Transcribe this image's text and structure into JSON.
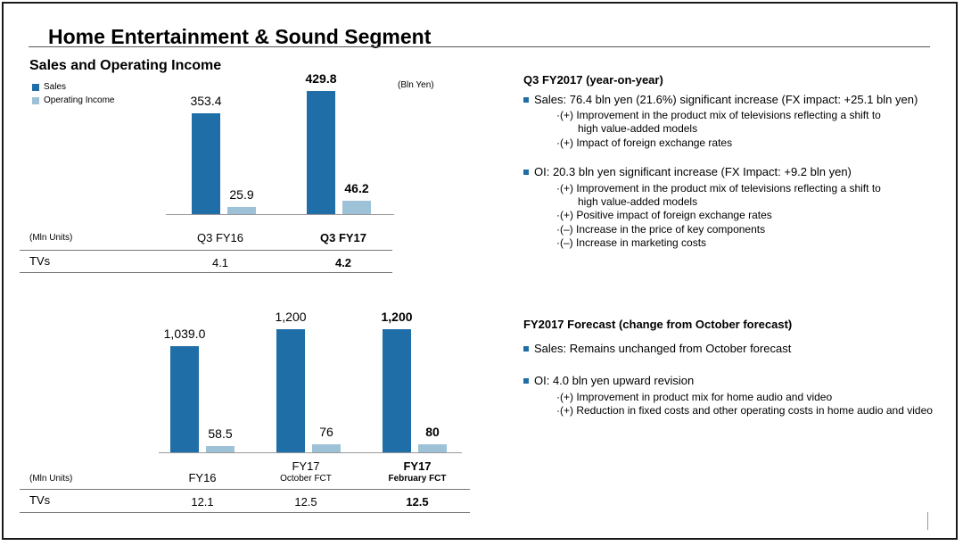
{
  "header": {
    "title": "Home Entertainment & Sound Segment",
    "section_title": "Sales and Operating Income"
  },
  "colors": {
    "sales": "#1f6ea8",
    "oi": "#9dc1d6",
    "bullet": "#1f6ea8"
  },
  "chart_data": [
    {
      "type": "bar",
      "legend": [
        "Sales",
        "Operating Income"
      ],
      "unit_label": "(Bln Yen)",
      "categories": [
        "Q3 FY16",
        "Q3 FY17"
      ],
      "series": [
        {
          "name": "Sales",
          "values": [
            353.4,
            429.8
          ],
          "labels": [
            "353.4",
            "429.8"
          ]
        },
        {
          "name": "Operating Income",
          "values": [
            25.9,
            46.2
          ],
          "labels": [
            "25.9",
            "46.2"
          ]
        }
      ],
      "table": {
        "unit_label": "(Mln Units)",
        "row_label": "TVs",
        "values": [
          "4.1",
          "4.2"
        ]
      }
    },
    {
      "type": "bar",
      "categories": [
        "FY16",
        "FY17",
        "FY17"
      ],
      "category_sub": [
        "",
        "October FCT",
        "February FCT"
      ],
      "series": [
        {
          "name": "Sales",
          "values": [
            1039.0,
            1200,
            1200
          ],
          "labels": [
            "1,039.0",
            "1,200",
            "1,200"
          ]
        },
        {
          "name": "Operating Income",
          "values": [
            58.5,
            76,
            80
          ],
          "labels": [
            "58.5",
            "76",
            "80"
          ]
        }
      ],
      "table": {
        "unit_label": "(Mln Units)",
        "row_label": "TVs",
        "values": [
          "12.1",
          "12.5",
          "12.5"
        ]
      }
    }
  ],
  "q3": {
    "heading": "Q3 FY2017 (year-on-year)",
    "sales_bullet": "Sales: 76.4 bln yen (21.6%) significant increase (FX impact: +25.1 bln yen)",
    "sales_subs": [
      "·(+)  Improvement in the product mix of televisions reflecting a shift to",
      "high value-added models",
      "·(+)  Impact of foreign exchange rates"
    ],
    "oi_bullet": "OI: 20.3 bln yen significant increase (FX Impact: +9.2 bln yen)",
    "oi_subs": [
      "·(+)  Improvement in the product mix of televisions reflecting a shift to",
      "high value-added models",
      "·(+)  Positive impact of foreign exchange rates",
      "·(–) Increase in the price of key components",
      "·(–) Increase in marketing costs"
    ]
  },
  "forecast": {
    "heading": "FY2017 Forecast (change from October forecast)",
    "sales_bullet": "Sales: Remains unchanged from October forecast",
    "oi_bullet": "OI: 4.0 bln yen upward revision",
    "oi_subs": [
      "·(+)  Improvement in product mix for home audio and video",
      "·(+) Reduction in fixed costs and other operating costs in home audio and video"
    ]
  }
}
